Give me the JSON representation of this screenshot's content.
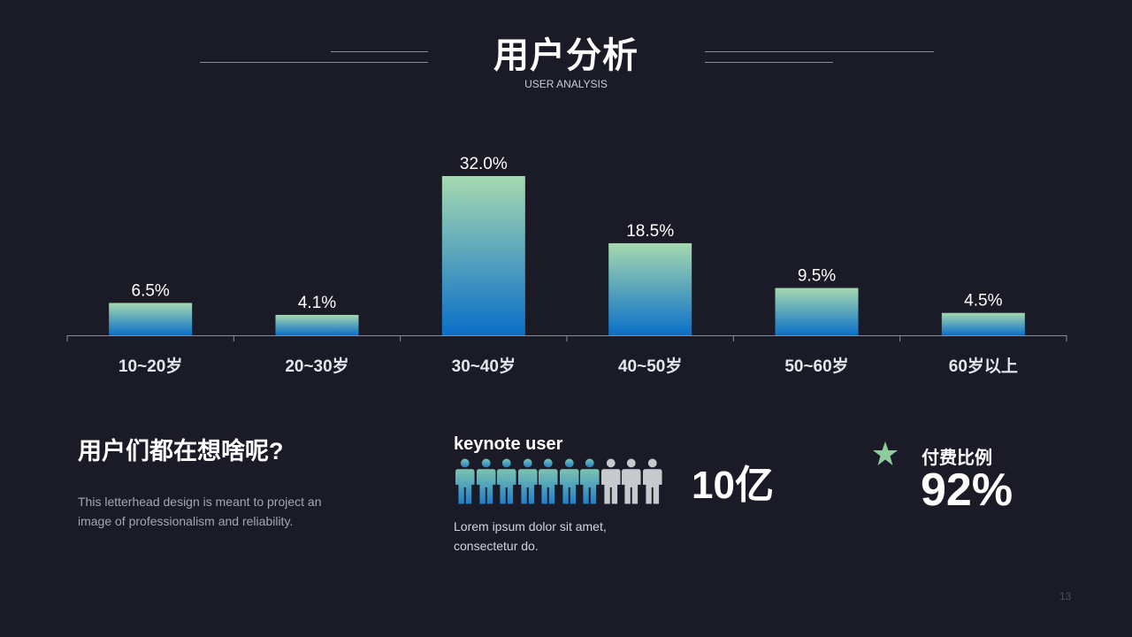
{
  "header": {
    "title": "用户分析",
    "subtitle": "USER ANALYSIS"
  },
  "chart_data": {
    "type": "bar",
    "categories": [
      "10~20岁",
      "20~30岁",
      "30~40岁",
      "40~50岁",
      "50~60岁",
      "60岁以上"
    ],
    "values": [
      6.5,
      4.1,
      32.0,
      18.5,
      9.5,
      4.5
    ],
    "value_labels": [
      "6.5%",
      "4.1%",
      "32.0%",
      "18.5%",
      "9.5%",
      "4.5%"
    ],
    "ylim": [
      0,
      32.0
    ],
    "grid": false,
    "colors": {
      "bar_top": "#a6d9b0",
      "bar_bottom": "#0a6fc7",
      "axis": "#8a8e9c"
    }
  },
  "question": {
    "title": "用户们都在想啥呢?",
    "description": "This letterhead design is meant to project an image of professionalism and reliability."
  },
  "keynote": {
    "title": "keynote user",
    "icon": "person-icon",
    "total_icons": 10,
    "highlighted_icons": 7,
    "description": "Lorem ipsum dolor sit amet, consectetur do.",
    "big_number": "10亿",
    "colors": {
      "highlight_top": "#7cc3b0",
      "highlight_bottom": "#1f7fc9",
      "muted": "#c8c9cd"
    }
  },
  "payment": {
    "icon": "star-icon",
    "label": "付费比例",
    "value": "92%",
    "star_color": "#8fcb9b"
  },
  "page_number": "13"
}
